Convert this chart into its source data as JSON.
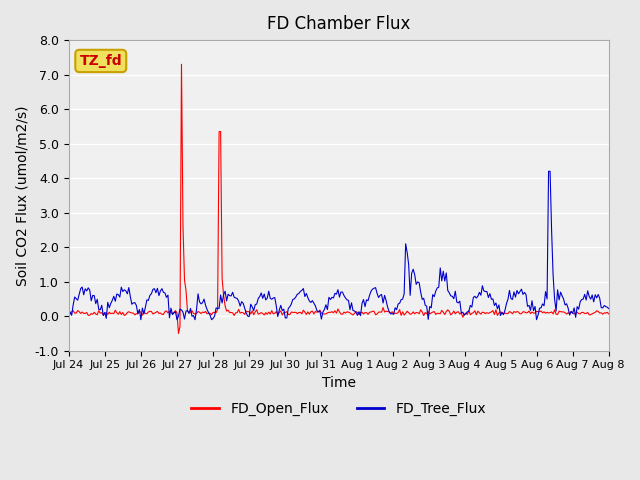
{
  "title": "FD Chamber Flux",
  "xlabel": "Time",
  "ylabel": "Soil CO2 Flux (umol/m2/s)",
  "ylim": [
    -1.0,
    8.0
  ],
  "yticks": [
    -1.0,
    0.0,
    1.0,
    2.0,
    3.0,
    4.0,
    5.0,
    6.0,
    7.0,
    8.0
  ],
  "background_color": "#e8e8e8",
  "plot_background": "#f0f0f0",
  "annotation_text": "TZ_fd",
  "annotation_bg": "#f0e060",
  "annotation_border": "#c8a000",
  "annotation_text_color": "#cc0000",
  "open_flux_color": "#ff0000",
  "tree_flux_color": "#0000cc",
  "legend_open": "FD_Open_Flux",
  "legend_tree": "FD_Tree_Flux",
  "n_points": 360,
  "x_tick_positions": [
    0,
    1,
    2,
    3,
    4,
    5,
    6,
    7,
    8,
    9,
    10,
    11,
    12,
    13,
    14,
    15
  ],
  "x_tick_labels": [
    "Jul 24",
    "Jul 25",
    "Jul 26",
    "Jul 27",
    "Jul 28",
    "Jul 29",
    "Jul 30",
    "Jul 31",
    "Aug 1",
    "Aug 2",
    "Aug 3",
    "Aug 4",
    "Aug 5",
    "Aug 6",
    "Aug 7",
    "Aug 8"
  ]
}
